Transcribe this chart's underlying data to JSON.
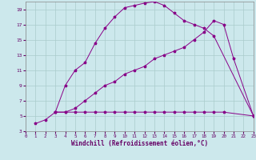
{
  "xlabel": "Windchill (Refroidissement éolien,°C)",
  "bg_color": "#cce8ec",
  "grid_color": "#aacccc",
  "line_color": "#880088",
  "xlim": [
    0,
    23
  ],
  "ylim": [
    3,
    20
  ],
  "xticks": [
    0,
    1,
    2,
    3,
    4,
    5,
    6,
    7,
    8,
    9,
    10,
    11,
    12,
    13,
    14,
    15,
    16,
    17,
    18,
    19,
    20,
    21,
    22,
    23
  ],
  "yticks": [
    3,
    5,
    7,
    9,
    11,
    13,
    15,
    17,
    19
  ],
  "curve1_x": [
    1,
    2,
    3,
    4,
    5,
    6,
    7,
    8,
    9,
    10,
    11,
    12,
    13,
    14,
    15,
    16,
    17,
    18,
    19,
    23
  ],
  "curve1_y": [
    4.0,
    4.5,
    5.5,
    9.0,
    11.0,
    12.0,
    14.5,
    16.5,
    18.0,
    19.2,
    19.5,
    19.8,
    20.0,
    19.5,
    18.5,
    17.5,
    17.0,
    16.5,
    15.5,
    5.0
  ],
  "curve2_x": [
    3,
    4,
    5,
    6,
    7,
    8,
    9,
    10,
    11,
    12,
    13,
    14,
    15,
    16,
    17,
    18,
    19,
    20,
    21,
    23
  ],
  "curve2_y": [
    5.5,
    5.5,
    6.0,
    7.0,
    8.0,
    9.0,
    9.5,
    10.5,
    11.0,
    11.5,
    12.5,
    13.0,
    13.5,
    14.0,
    15.0,
    16.0,
    17.5,
    17.0,
    12.5,
    5.0
  ],
  "curve3_x": [
    3,
    4,
    5,
    6,
    7,
    8,
    9,
    10,
    11,
    12,
    13,
    14,
    15,
    16,
    17,
    18,
    19,
    20,
    23
  ],
  "curve3_y": [
    5.5,
    5.5,
    5.5,
    5.5,
    5.5,
    5.5,
    5.5,
    5.5,
    5.5,
    5.5,
    5.5,
    5.5,
    5.5,
    5.5,
    5.5,
    5.5,
    5.5,
    5.5,
    5.0
  ]
}
